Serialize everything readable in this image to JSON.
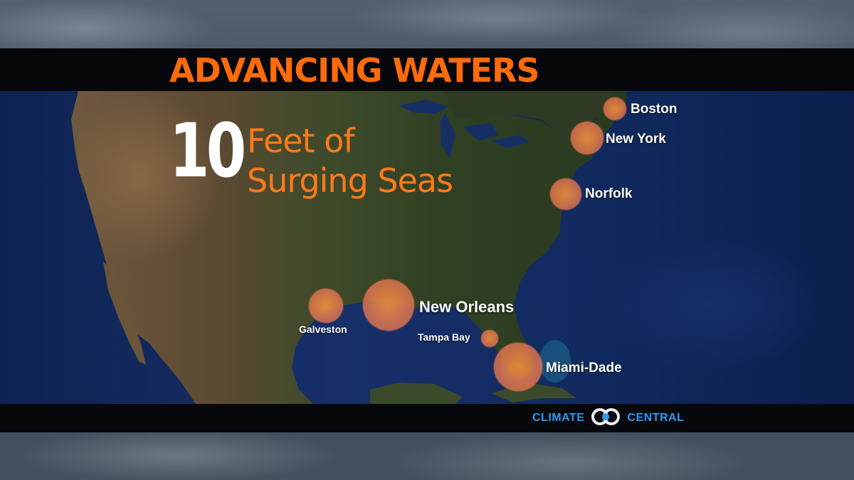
{
  "title": "ADVANCING WATERS",
  "headline": {
    "number": "10",
    "line1": "Feet of",
    "line2": "Surging Seas"
  },
  "cities": [
    {
      "name": "Boston"
    },
    {
      "name": "New York"
    },
    {
      "name": "Norfolk"
    },
    {
      "name": "New Orleans"
    },
    {
      "name": "Galveston"
    },
    {
      "name": "Tampa Bay"
    },
    {
      "name": "Miami-Dade"
    }
  ],
  "logo": {
    "left_text": "CLIMATE",
    "right_text": "CENTRAL",
    "icon": "climate-central-logo-icon"
  },
  "colors": {
    "accent": "#ff6a0a",
    "circle": "#e8825a",
    "ocean": "#14306a",
    "logo": "#2a9df4"
  }
}
